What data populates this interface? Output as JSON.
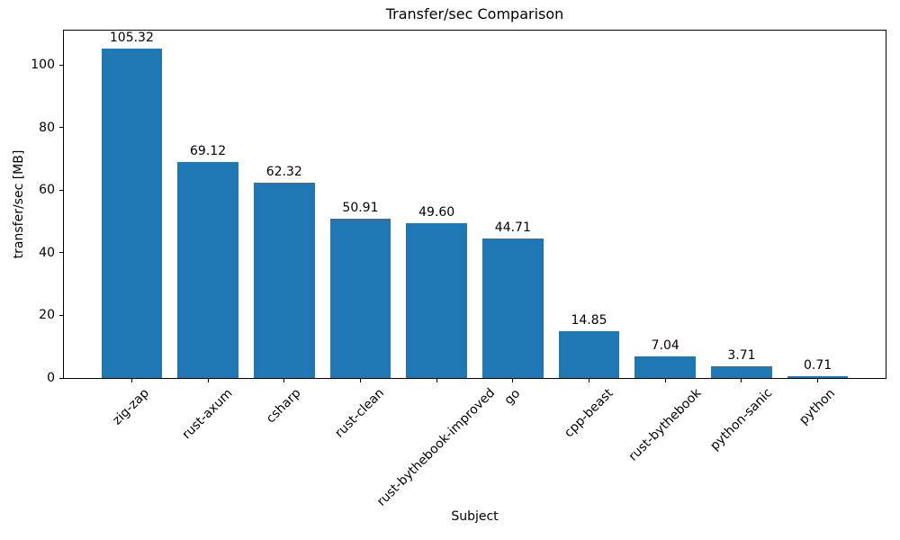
{
  "chart_data": {
    "type": "bar",
    "title": "Transfer/sec Comparison",
    "xlabel": "Subject",
    "ylabel": "transfer/sec [MB]",
    "categories": [
      "zig-zap",
      "rust-axum",
      "csharp",
      "rust-clean",
      "rust-bythebook-improved",
      "go",
      "cpp-beast",
      "rust-bythebook",
      "python-sanic",
      "python"
    ],
    "values": [
      105.32,
      69.12,
      62.32,
      50.91,
      49.6,
      44.71,
      14.85,
      7.04,
      3.71,
      0.71
    ],
    "bar_labels": [
      "105.32",
      "69.12",
      "62.32",
      "50.91",
      "49.60",
      "44.71",
      "14.85",
      "7.04",
      "3.71",
      "0.71"
    ],
    "yticks": [
      0,
      20,
      40,
      60,
      80,
      100
    ],
    "ylim": [
      0,
      111
    ],
    "xlim": [
      -0.89,
      9.89
    ],
    "bar_width_units": 0.8,
    "bar_color": "#1f77b4",
    "text_color": "#000000",
    "background_color": "#ffffff",
    "grid": false,
    "legend_position": "none",
    "x_tick_rotation_deg": 45
  }
}
